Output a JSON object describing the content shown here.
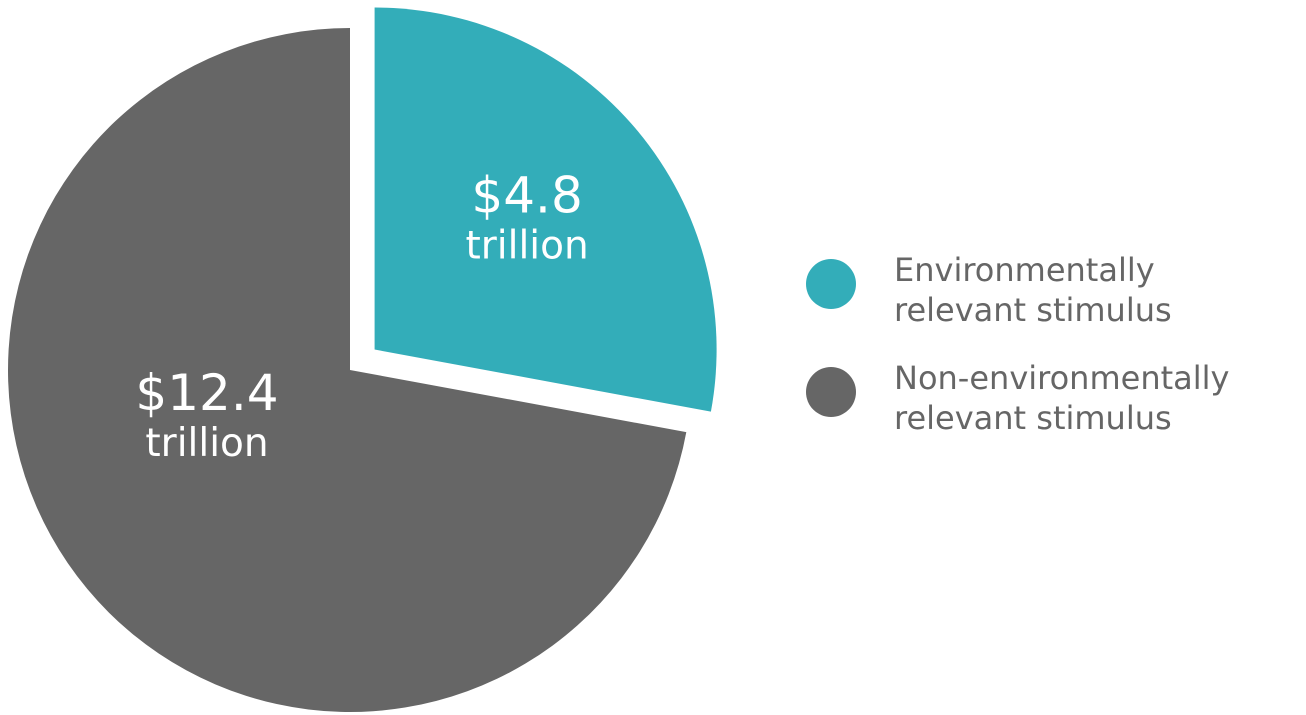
{
  "chart_data": {
    "type": "pie",
    "title": "",
    "unit": "trillion",
    "slices": [
      {
        "name": "Environmentally relevant stimulus",
        "legend_lines": [
          "Environmentally",
          "relevant stimulus"
        ],
        "value": 4.8,
        "value_label": "$4.8",
        "unit_label": "trillion",
        "color": "#33adb9",
        "exploded": true
      },
      {
        "name": "Non-environmentally relevant stimulus",
        "legend_lines": [
          "Non-environmentally",
          "relevant stimulus"
        ],
        "value": 12.4,
        "value_label": "$12.4",
        "unit_label": "trillion",
        "color": "#666666",
        "exploded": false
      }
    ],
    "start_angle": "12 o'clock",
    "direction": "clockwise",
    "legend_position": "right"
  }
}
